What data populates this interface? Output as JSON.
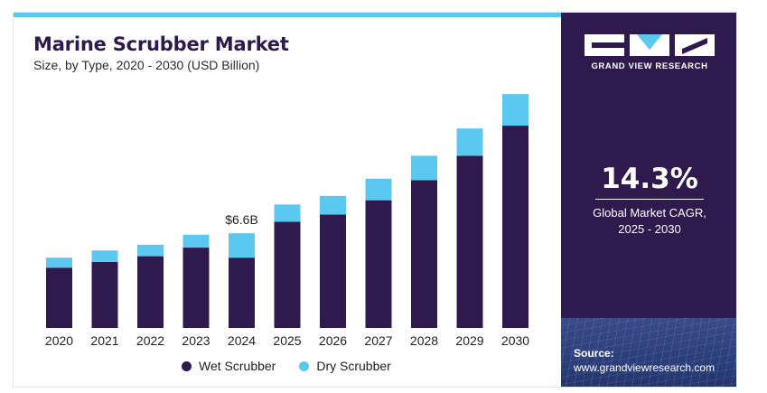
{
  "header": {
    "title": "Marine Scrubber Market",
    "subtitle": "Size, by Type, 2020 - 2030 (USD Billion)"
  },
  "chart_data": {
    "type": "bar",
    "stacked": true,
    "categories": [
      "2020",
      "2021",
      "2022",
      "2023",
      "2024",
      "2025",
      "2026",
      "2027",
      "2028",
      "2029",
      "2030"
    ],
    "series": [
      {
        "name": "Wet Scrubber",
        "color": "#2e1a4d",
        "values": [
          4.2,
          4.6,
          5.0,
          5.6,
          4.9,
          7.4,
          7.9,
          8.9,
          10.3,
          12.0,
          14.1
        ]
      },
      {
        "name": "Dry Scrubber",
        "color": "#5bc8f0",
        "values": [
          0.7,
          0.8,
          0.8,
          0.9,
          1.7,
          1.2,
          1.3,
          1.5,
          1.7,
          1.9,
          2.2
        ]
      }
    ],
    "annotations": [
      {
        "category": "2024",
        "text": "$6.6B"
      }
    ],
    "ylim": [
      0,
      17
    ],
    "grid": false,
    "legend": "bottom"
  },
  "sidebar": {
    "brand": "GRAND VIEW RESEARCH",
    "cagr_value": "14.3%",
    "cagr_label_line1": "Global Market CAGR,",
    "cagr_label_line2": "2025 - 2030",
    "source_label": "Source:",
    "source_url": "www.grandviewresearch.com"
  }
}
